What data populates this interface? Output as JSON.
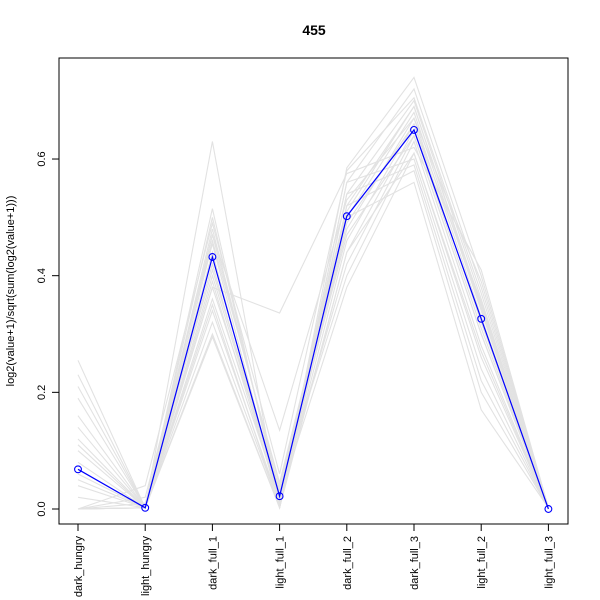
{
  "chart_data": {
    "type": "line",
    "title": "455",
    "xlabel": "",
    "ylabel": "log2(value+1)/sqrt(sum(log2(value+1)))",
    "categories": [
      "dark_hungry",
      "light_hungry",
      "dark_full_1",
      "light_full_1",
      "dark_full_2",
      "dark_full_3",
      "light_full_2",
      "light_full_3"
    ],
    "y_ticks": [
      "0.0",
      "0.2",
      "0.4",
      "0.6"
    ],
    "ylim": [
      0,
      0.75
    ],
    "grid": false,
    "legend": "none",
    "highlight": {
      "color": "#0000ff",
      "values": [
        0.068,
        0.002,
        0.432,
        0.022,
        0.502,
        0.65,
        0.326,
        0.0
      ]
    },
    "background_color": "#e2e2e2",
    "background_series": [
      [
        0.255,
        0.002,
        0.63,
        0.002,
        0.585,
        0.74,
        0.4,
        0.002
      ],
      [
        0.23,
        0.002,
        0.515,
        0.01,
        0.56,
        0.72,
        0.38,
        0.002
      ],
      [
        0.21,
        0.002,
        0.5,
        0.02,
        0.54,
        0.7,
        0.36,
        0.002
      ],
      [
        0.19,
        0.002,
        0.48,
        0.03,
        0.52,
        0.69,
        0.35,
        0.002
      ],
      [
        0.16,
        0.002,
        0.47,
        0.04,
        0.5,
        0.68,
        0.34,
        0.002
      ],
      [
        0.14,
        0.002,
        0.455,
        0.015,
        0.48,
        0.67,
        0.33,
        0.002
      ],
      [
        0.12,
        0.002,
        0.44,
        0.01,
        0.46,
        0.66,
        0.32,
        0.002
      ],
      [
        0.1,
        0.002,
        0.42,
        0.005,
        0.44,
        0.65,
        0.31,
        0.002
      ],
      [
        0.08,
        0.002,
        0.4,
        0.025,
        0.42,
        0.64,
        0.3,
        0.002
      ],
      [
        0.06,
        0.002,
        0.38,
        0.035,
        0.4,
        0.63,
        0.28,
        0.002
      ],
      [
        0.04,
        0.002,
        0.36,
        0.02,
        0.38,
        0.61,
        0.26,
        0.002
      ],
      [
        0.02,
        0.002,
        0.34,
        0.01,
        0.56,
        0.6,
        0.24,
        0.002
      ],
      [
        0.0,
        0.002,
        0.32,
        0.005,
        0.54,
        0.59,
        0.22,
        0.002
      ],
      [
        0.0,
        0.002,
        0.3,
        0.002,
        0.52,
        0.58,
        0.2,
        0.002
      ],
      [
        0.0,
        0.002,
        0.295,
        0.002,
        0.5,
        0.56,
        0.17,
        0.002
      ],
      [
        0.0,
        0.002,
        0.38,
        0.336,
        0.575,
        0.62,
        0.41,
        0.002
      ],
      [
        0.0,
        0.002,
        0.47,
        0.135,
        0.53,
        0.67,
        0.39,
        0.002
      ],
      [
        0.0,
        0.04,
        0.49,
        0.06,
        0.58,
        0.705,
        0.37,
        0.002
      ],
      [
        0.0,
        0.02,
        0.46,
        0.045,
        0.51,
        0.69,
        0.345,
        0.002
      ],
      [
        0.0,
        0.01,
        0.41,
        0.03,
        0.47,
        0.64,
        0.3,
        0.002
      ],
      [
        0.05,
        0.002,
        0.35,
        0.002,
        0.44,
        0.61,
        0.27,
        0.002
      ],
      [
        0.11,
        0.002,
        0.39,
        0.012,
        0.49,
        0.66,
        0.355,
        0.002
      ]
    ]
  }
}
